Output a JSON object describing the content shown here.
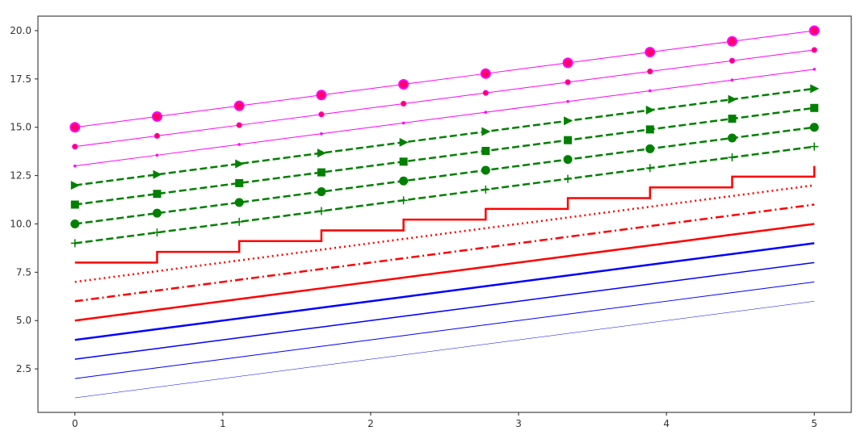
{
  "chart_data": {
    "type": "line",
    "title": "",
    "xlabel": "",
    "ylabel": "",
    "xlim": [
      -0.25,
      5.25
    ],
    "ylim": [
      0.25,
      20.75
    ],
    "grid": false,
    "xticks": [
      0,
      1,
      2,
      3,
      4,
      5
    ],
    "xtick_labels": [
      "0",
      "1",
      "2",
      "3",
      "4",
      "5"
    ],
    "yticks": [
      2.5,
      5.0,
      7.5,
      10.0,
      12.5,
      15.0,
      17.5,
      20.0
    ],
    "ytick_labels": [
      "2.5",
      "5.0",
      "7.5",
      "10.0",
      "12.5",
      "15.0",
      "17.5",
      "20.0"
    ],
    "x": [
      0,
      0.5556,
      1.1111,
      1.6667,
      2.2222,
      2.7778,
      3.3333,
      3.8889,
      4.4444,
      5
    ],
    "series": [
      {
        "offset": 1,
        "color": "#0000ff",
        "style": "solid",
        "width": 0.5,
        "marker": "none"
      },
      {
        "offset": 2,
        "color": "#0000ff",
        "style": "solid",
        "width": 1.0,
        "marker": "none"
      },
      {
        "offset": 3,
        "color": "#0000ff",
        "style": "solid",
        "width": 1.5,
        "marker": "none"
      },
      {
        "offset": 4,
        "color": "#0000ff",
        "style": "solid",
        "width": 2.5,
        "marker": "none"
      },
      {
        "offset": 5,
        "color": "#ff0000",
        "style": "solid",
        "width": 2.5,
        "marker": "none"
      },
      {
        "offset": 6,
        "color": "#ff0000",
        "style": "dashdot",
        "width": 2.5,
        "marker": "none"
      },
      {
        "offset": 7,
        "color": "#ff0000",
        "style": "dotted",
        "width": 2.5,
        "marker": "none"
      },
      {
        "offset": 8,
        "color": "#ff0000",
        "style": "steps",
        "width": 2.5,
        "marker": "none"
      },
      {
        "offset": 9,
        "color": "#008000",
        "style": "dashed",
        "width": 2.5,
        "marker": "plus"
      },
      {
        "offset": 10,
        "color": "#008000",
        "style": "dashed",
        "width": 2.5,
        "marker": "circle"
      },
      {
        "offset": 11,
        "color": "#008000",
        "style": "dashed",
        "width": 2.5,
        "marker": "square"
      },
      {
        "offset": 12,
        "color": "#008000",
        "style": "dashed",
        "width": 2.5,
        "marker": "triangle-right"
      },
      {
        "offset": 13,
        "color": "#ff00ff",
        "style": "solid",
        "width": 1.0,
        "marker": "dot-small",
        "marker_color": "#ff00ff"
      },
      {
        "offset": 14,
        "color": "#ff00ff",
        "style": "solid",
        "width": 1.0,
        "marker": "dot-medium",
        "marker_color": "#ff0066"
      },
      {
        "offset": 15,
        "color": "#ff00ff",
        "style": "solid",
        "width": 1.0,
        "marker": "dot-large",
        "marker_color": "#ff0066",
        "marker_edge": "#ff00ff"
      }
    ]
  }
}
